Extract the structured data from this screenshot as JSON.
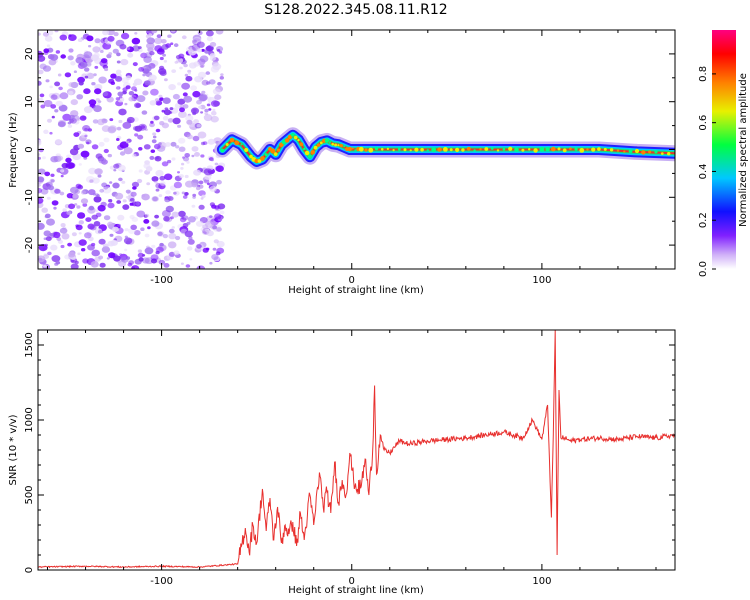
{
  "title": "S128.2022.345.08.11.R12",
  "colors": {
    "snr_line": "#e8302e",
    "axis": "#000000",
    "colormap": [
      "#ffffff",
      "#a070f0",
      "#7000ff",
      "#0010ff",
      "#00c8ff",
      "#00ff40",
      "#f0f000",
      "#ff8000",
      "#ff0000",
      "#ff0080"
    ]
  },
  "chart_data": [
    {
      "type": "heatmap",
      "subtype": "spectrogram",
      "xlabel": "Height of straight line (km)",
      "ylabel": "Frequency (Hz)",
      "xlim": [
        -165,
        170
      ],
      "ylim": [
        -25,
        25
      ],
      "xticks": [
        -100,
        0,
        100
      ],
      "xtick_labels": [
        "-100",
        "0",
        "100"
      ],
      "yticks": [
        20,
        10,
        0,
        -10,
        -20
      ],
      "ytick_labels": [
        "20",
        "10",
        "0",
        "-10",
        "-20"
      ],
      "noise_region_x": [
        -165,
        -68
      ],
      "signal_ridge": {
        "x": [
          -68,
          -63,
          -58,
          -53,
          -50,
          -47,
          -43,
          -40,
          -37,
          -34,
          -31,
          -28,
          -25,
          -22,
          -19,
          -16,
          -13,
          -10,
          -7,
          -4,
          -1,
          2,
          5,
          10,
          40,
          80,
          100,
          130,
          150,
          170
        ],
        "freq": [
          0,
          2,
          1,
          -1.5,
          -2.5,
          -2,
          0,
          -1,
          1,
          2,
          3,
          2,
          0,
          -1.5,
          0.5,
          1.5,
          1.8,
          1.2,
          1,
          0.5,
          0,
          0,
          0,
          0,
          0,
          0,
          0,
          0,
          -0.5,
          -0.8
        ]
      },
      "colorbar": {
        "label": "Normalized spectral amplitude",
        "ticks": [
          0.0,
          0.2,
          0.4,
          0.6,
          0.8
        ],
        "tick_labels": [
          "0.0",
          "0.2",
          "0.4",
          "0.6",
          "0.8"
        ],
        "range": [
          0,
          0.98
        ]
      }
    },
    {
      "type": "line",
      "xlabel": "Height of straight line (km)",
      "ylabel": "SNR (10 * v/v)",
      "xlim": [
        -165,
        170
      ],
      "ylim": [
        0,
        1600
      ],
      "xticks": [
        -100,
        0,
        100
      ],
      "xtick_labels": [
        "-100",
        "0",
        "100"
      ],
      "yticks": [
        0,
        500,
        1000,
        1500
      ],
      "ytick_labels": [
        "0",
        "500",
        "1000",
        "1500"
      ],
      "series": [
        {
          "x": [
            -165,
            -140,
            -120,
            -100,
            -80,
            -60,
            -56,
            -54,
            -52,
            -50,
            -47,
            -45,
            -43,
            -41,
            -39,
            -37,
            -35,
            -33,
            -31,
            -29,
            -27,
            -25,
            -22,
            -20,
            -17,
            -15,
            -13,
            -11,
            -9,
            -7,
            -5,
            -3,
            -1,
            1,
            3,
            5,
            7,
            9,
            11,
            12,
            13,
            15,
            17,
            20,
            25,
            30,
            40,
            50,
            60,
            70,
            80,
            90,
            95,
            100,
            103,
            105,
            106,
            107,
            108,
            109,
            110,
            112,
            115,
            120,
            130,
            140,
            150,
            160,
            170
          ],
          "y": [
            20,
            25,
            20,
            25,
            20,
            40,
            280,
            120,
            300,
            180,
            540,
            260,
            480,
            200,
            420,
            180,
            300,
            240,
            320,
            160,
            380,
            200,
            500,
            300,
            650,
            420,
            520,
            380,
            720,
            450,
            600,
            500,
            780,
            600,
            540,
            560,
            740,
            500,
            800,
            1230,
            640,
            900,
            800,
            780,
            860,
            840,
            860,
            870,
            880,
            900,
            920,
            880,
            1000,
            870,
            1100,
            350,
            900,
            1600,
            100,
            1200,
            880,
            880,
            860,
            870,
            880,
            870,
            890,
            880,
            900
          ]
        }
      ]
    }
  ]
}
